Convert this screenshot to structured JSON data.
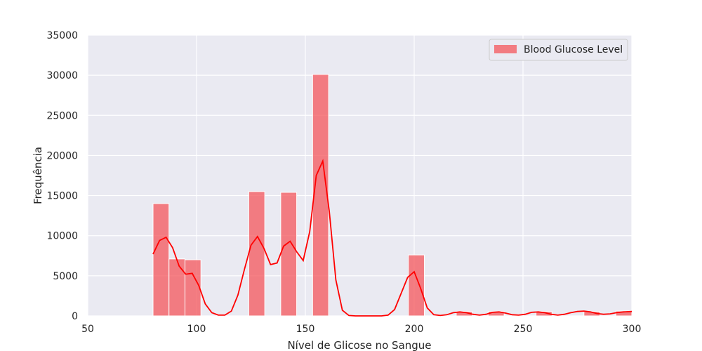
{
  "chart_data": {
    "type": "bar",
    "subtype": "histogram-with-kde",
    "title": "",
    "xlabel": "Nível de Glicose no Sangue",
    "ylabel": "Frequência",
    "xlim": [
      50,
      300
    ],
    "ylim": [
      0,
      35000
    ],
    "xticks": [
      50,
      100,
      150,
      200,
      250,
      300
    ],
    "yticks": [
      0,
      5000,
      10000,
      15000,
      20000,
      25000,
      30000,
      35000
    ],
    "grid": true,
    "legend_position": "top-right",
    "colors": {
      "bar": "#f4555b",
      "kde": "#ff0000",
      "plot_bg": "#eaeaf2",
      "grid": "#ffffff"
    },
    "series": [
      {
        "name": "Blood Glucose Level",
        "bins": [
          {
            "x0": 80,
            "x1": 87.33,
            "count": 14000
          },
          {
            "x0": 87.33,
            "x1": 94.67,
            "count": 7100
          },
          {
            "x0": 94.67,
            "x1": 102,
            "count": 7000
          },
          {
            "x0": 124,
            "x1": 131.33,
            "count": 15500
          },
          {
            "x0": 138.67,
            "x1": 146,
            "count": 15400
          },
          {
            "x0": 153.33,
            "x1": 160.67,
            "count": 30100
          },
          {
            "x0": 197.33,
            "x1": 204.67,
            "count": 7600
          },
          {
            "x0": 219.33,
            "x1": 226.67,
            "count": 550
          },
          {
            "x0": 234,
            "x1": 241.33,
            "count": 550
          },
          {
            "x0": 256,
            "x1": 263.33,
            "count": 550
          },
          {
            "x0": 278,
            "x1": 285.33,
            "count": 550
          },
          {
            "x0": 292.67,
            "x1": 300,
            "count": 600
          }
        ],
        "kde": {
          "x": [
            80,
            83,
            86,
            89,
            92,
            95,
            98,
            101,
            104,
            107,
            110,
            113,
            116,
            119,
            122,
            125,
            128,
            131,
            134,
            137,
            140,
            143,
            146,
            149,
            152,
            155,
            158,
            161,
            164,
            167,
            170,
            173,
            176,
            179,
            182,
            185,
            188,
            191,
            194,
            197,
            200,
            203,
            206,
            209,
            212,
            215,
            218,
            221,
            224,
            227,
            230,
            233,
            236,
            239,
            242,
            245,
            248,
            251,
            254,
            257,
            260,
            263,
            266,
            269,
            272,
            275,
            278,
            281,
            284,
            287,
            290,
            293,
            296,
            300
          ],
          "y": [
            7700,
            9400,
            9800,
            8500,
            6200,
            5200,
            5300,
            3800,
            1500,
            400,
            100,
            100,
            600,
            2600,
            5800,
            8800,
            9900,
            8400,
            6400,
            6600,
            8700,
            9300,
            8000,
            6900,
            10500,
            17500,
            19300,
            13000,
            4500,
            700,
            50,
            0,
            0,
            0,
            0,
            0,
            100,
            800,
            2800,
            4800,
            5500,
            3400,
            1000,
            150,
            50,
            150,
            400,
            500,
            400,
            200,
            100,
            200,
            450,
            500,
            350,
            150,
            100,
            200,
            450,
            500,
            400,
            200,
            100,
            200,
            400,
            550,
            600,
            500,
            300,
            200,
            250,
            400,
            500,
            550
          ]
        }
      }
    ]
  }
}
